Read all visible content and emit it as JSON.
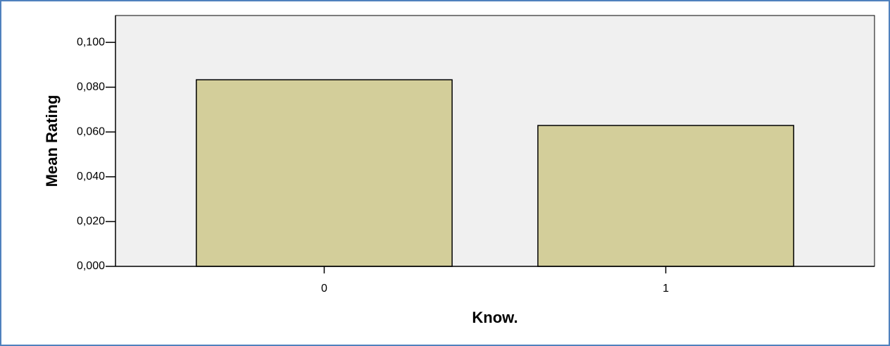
{
  "chart_data": {
    "type": "bar",
    "categories": [
      "0",
      "1"
    ],
    "values": [
      0.0833,
      0.0629
    ],
    "color": "#d3ce9a",
    "x_label": "Know.",
    "y_label": "Mean Rating",
    "ylim": [
      0,
      0.112
    ],
    "yticks": [
      {
        "value": 0,
        "label": "0,000"
      },
      {
        "value": 0.02,
        "label": "0,020"
      },
      {
        "value": 0.04,
        "label": "0,040"
      },
      {
        "value": 0.06,
        "label": "0,060"
      },
      {
        "value": 0.08,
        "label": "0,080"
      },
      {
        "value": 0.1,
        "label": "0,100"
      }
    ],
    "grid": false
  }
}
